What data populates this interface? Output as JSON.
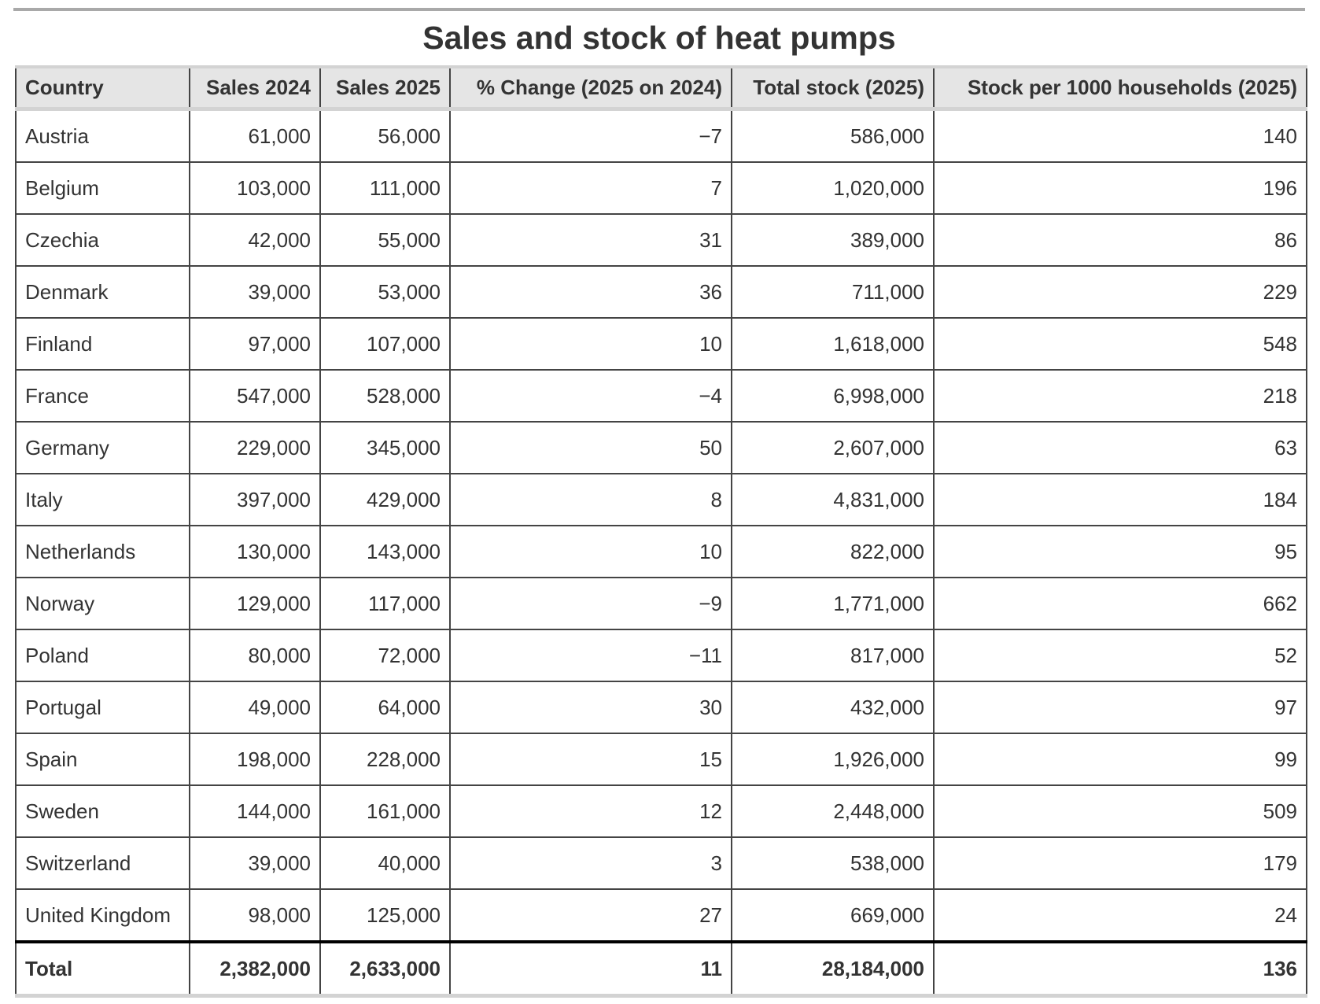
{
  "title": "Sales and stock of heat pumps",
  "columns": [
    "Country",
    "Sales 2024",
    "Sales 2025",
    "% Change (2025 on 2024)",
    "Total stock (2025)",
    "Stock per 1000 households (2025)"
  ],
  "rows": [
    [
      "Austria",
      "61,000",
      "56,000",
      "−7",
      "586,000",
      "140"
    ],
    [
      "Belgium",
      "103,000",
      "111,000",
      "7",
      "1,020,000",
      "196"
    ],
    [
      "Czechia",
      "42,000",
      "55,000",
      "31",
      "389,000",
      "86"
    ],
    [
      "Denmark",
      "39,000",
      "53,000",
      "36",
      "711,000",
      "229"
    ],
    [
      "Finland",
      "97,000",
      "107,000",
      "10",
      "1,618,000",
      "548"
    ],
    [
      "France",
      "547,000",
      "528,000",
      "−4",
      "6,998,000",
      "218"
    ],
    [
      "Germany",
      "229,000",
      "345,000",
      "50",
      "2,607,000",
      "63"
    ],
    [
      "Italy",
      "397,000",
      "429,000",
      "8",
      "4,831,000",
      "184"
    ],
    [
      "Netherlands",
      "130,000",
      "143,000",
      "10",
      "822,000",
      "95"
    ],
    [
      "Norway",
      "129,000",
      "117,000",
      "−9",
      "1,771,000",
      "662"
    ],
    [
      "Poland",
      "80,000",
      "72,000",
      "−11",
      "817,000",
      "52"
    ],
    [
      "Portugal",
      "49,000",
      "64,000",
      "30",
      "432,000",
      "97"
    ],
    [
      "Spain",
      "198,000",
      "228,000",
      "15",
      "1,926,000",
      "99"
    ],
    [
      "Sweden",
      "144,000",
      "161,000",
      "12",
      "2,448,000",
      "509"
    ],
    [
      "Switzerland",
      "39,000",
      "40,000",
      "3",
      "538,000",
      "179"
    ],
    [
      "United Kingdom",
      "98,000",
      "125,000",
      "27",
      "669,000",
      "24"
    ]
  ],
  "total": [
    "Total",
    "2,382,000",
    "2,633,000",
    "11",
    "28,184,000",
    "136"
  ]
}
